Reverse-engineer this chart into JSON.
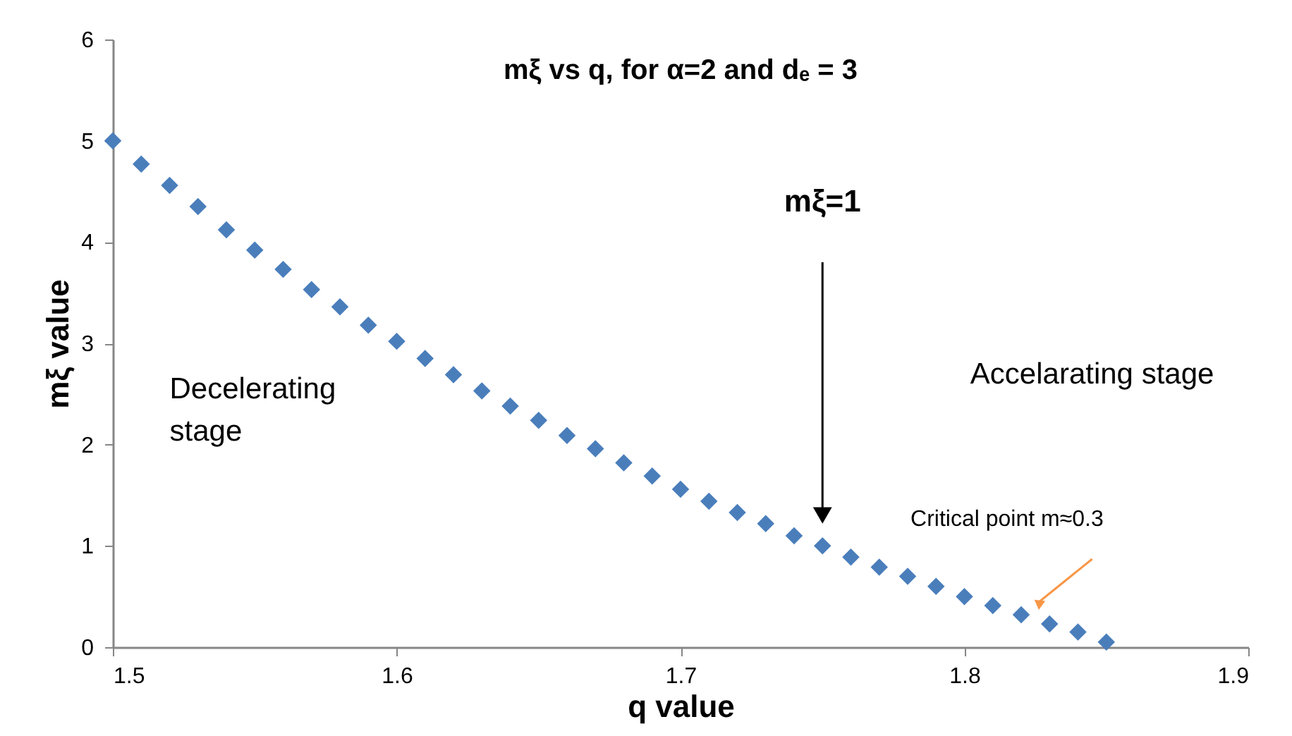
{
  "chart_data": {
    "type": "scatter",
    "title": "mξ  vs q,  for α=2 and dₑ = 3",
    "xlabel": "q value",
    "ylabel": "mξ value",
    "x": [
      1.5,
      1.51,
      1.52,
      1.53,
      1.54,
      1.55,
      1.56,
      1.57,
      1.58,
      1.59,
      1.6,
      1.61,
      1.62,
      1.63,
      1.64,
      1.65,
      1.66,
      1.67,
      1.68,
      1.69,
      1.7,
      1.71,
      1.72,
      1.73,
      1.74,
      1.75,
      1.76,
      1.77,
      1.78,
      1.79,
      1.8,
      1.81,
      1.82,
      1.83,
      1.84,
      1.85
    ],
    "series": [
      {
        "color": "#4a7ebb",
        "values": [
          5.0,
          4.77,
          4.56,
          4.35,
          4.12,
          3.92,
          3.73,
          3.53,
          3.36,
          3.18,
          3.02,
          2.85,
          2.69,
          2.53,
          2.38,
          2.24,
          2.09,
          1.96,
          1.82,
          1.69,
          1.56,
          1.44,
          1.33,
          1.22,
          1.1,
          1.0,
          0.89,
          0.79,
          0.7,
          0.6,
          0.5,
          0.41,
          0.32,
          0.23,
          0.15,
          0.05
        ]
      }
    ],
    "marker": "diamond",
    "xlim": [
      1.5,
      1.9
    ],
    "ylim": [
      0,
      6
    ],
    "xticks": [
      1.5,
      1.6,
      1.7,
      1.8,
      1.9
    ],
    "yticks": [
      0,
      1,
      2,
      3,
      4,
      5,
      6
    ],
    "grid": false,
    "annotations": [
      "mξ=1",
      "Critical point m≈0.3",
      "Decelerating stage",
      "Accelarating stage"
    ]
  }
}
